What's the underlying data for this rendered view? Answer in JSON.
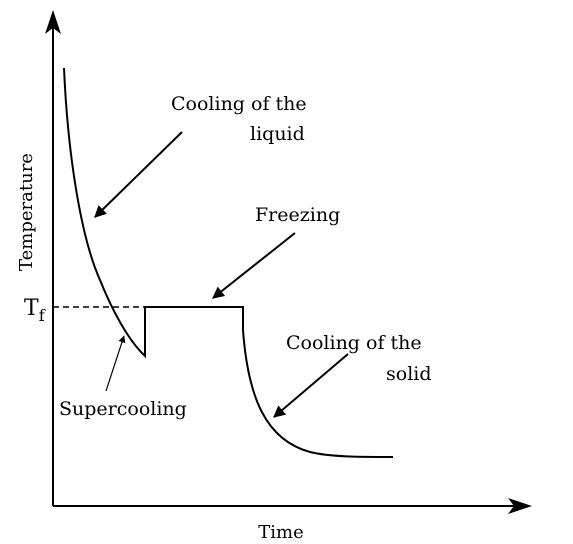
{
  "axes": {
    "x_label": "Time",
    "y_label": "Temperature"
  },
  "marker": {
    "main": "T",
    "sub": "f"
  },
  "annotations": {
    "cooling_liquid": [
      "Cooling of the",
      "liquid"
    ],
    "freezing": "Freezing",
    "cooling_solid": [
      "Cooling of the",
      "solid"
    ],
    "supercooling": "Supercooling"
  },
  "colors": {
    "line": "#000000",
    "background": "#ffffff"
  }
}
